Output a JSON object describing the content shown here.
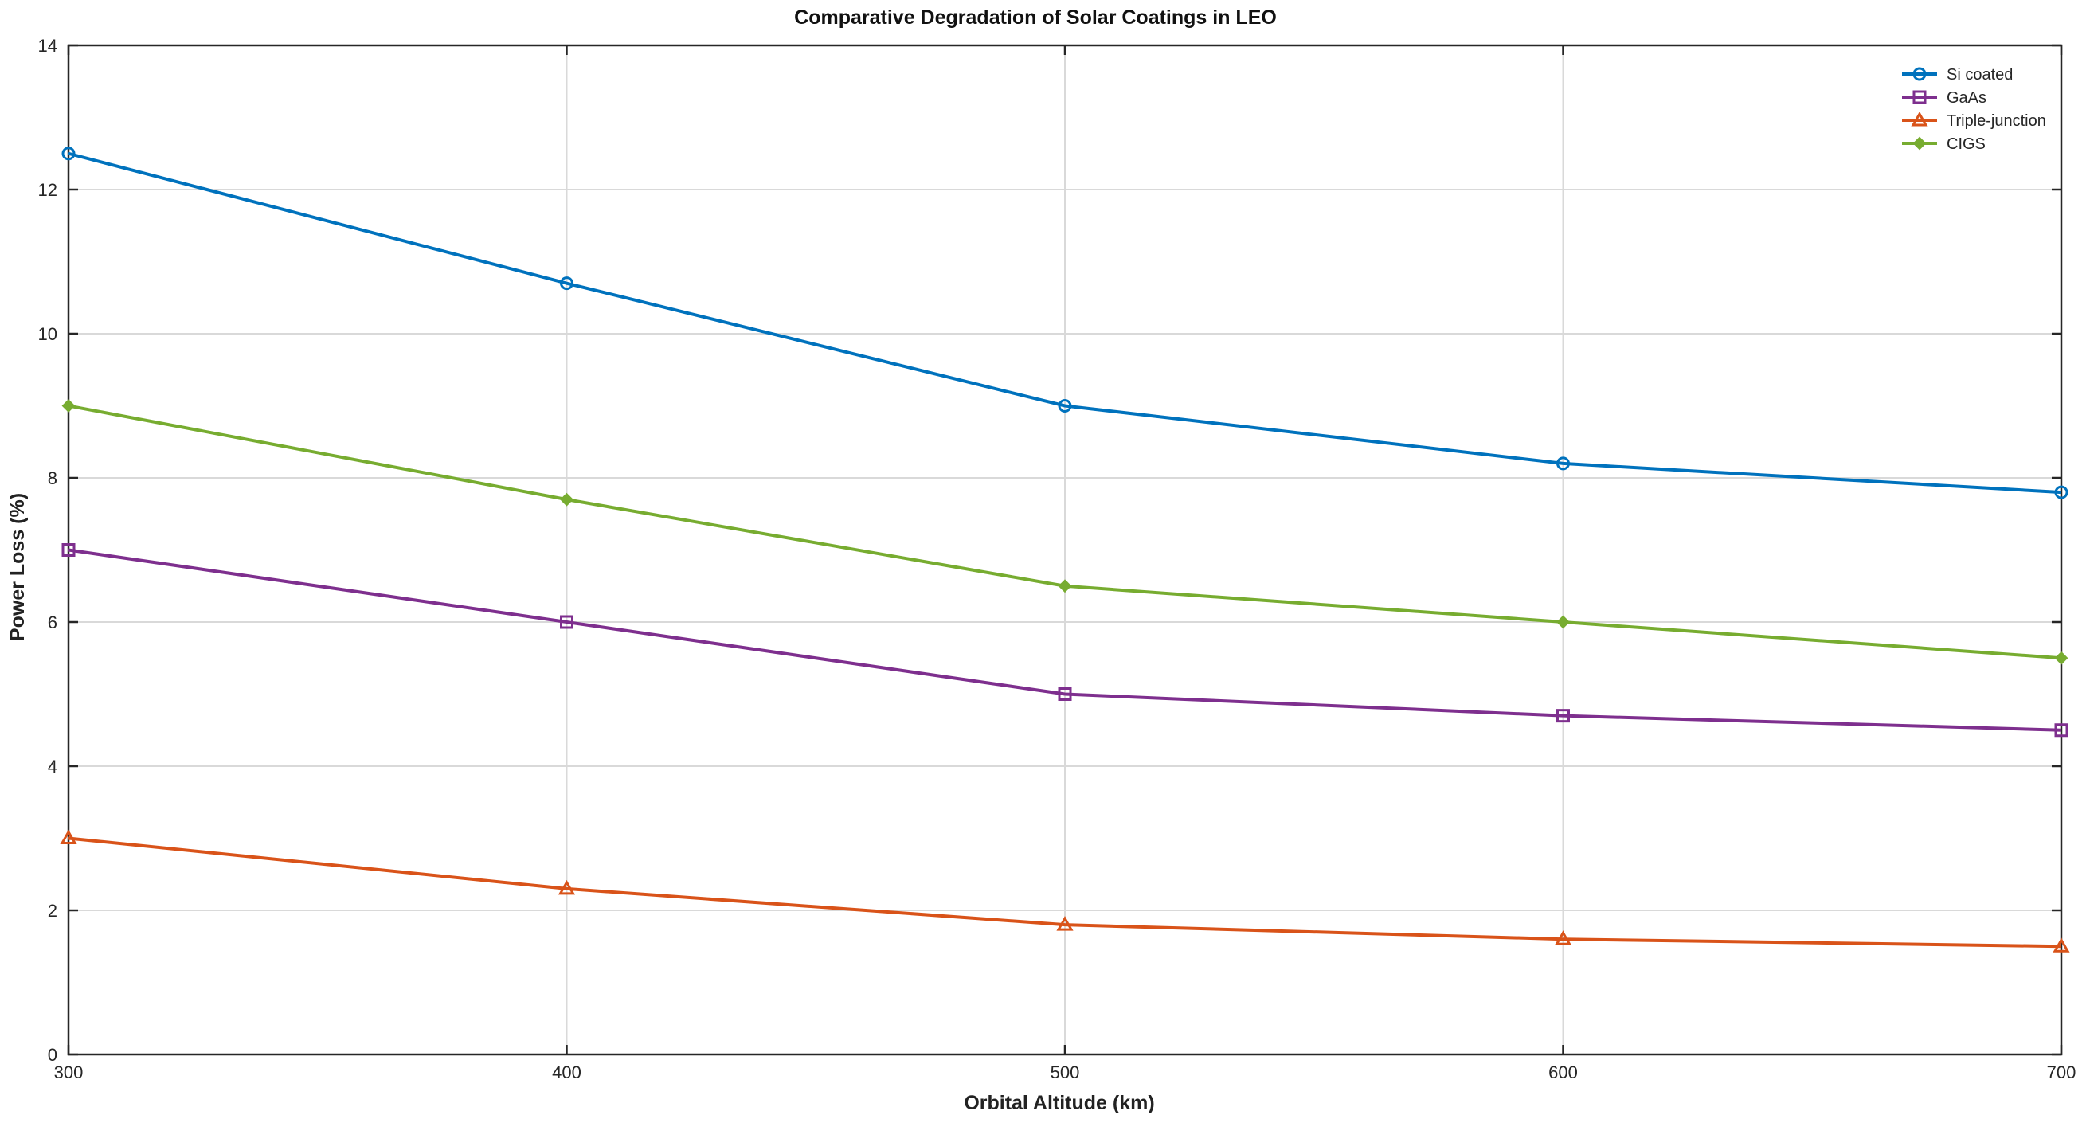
{
  "chart_data": {
    "type": "line",
    "title": "Comparative Degradation of Solar Coatings in LEO",
    "xlabel": "Orbital Altitude (km)",
    "ylabel": "Power Loss (%)",
    "x": [
      300,
      400,
      500,
      600,
      700
    ],
    "xlim": [
      300,
      700
    ],
    "ylim": [
      0,
      14
    ],
    "xticks": [
      "300",
      "400",
      "500",
      "600",
      "700"
    ],
    "yticks": [
      "0",
      "2",
      "4",
      "6",
      "8",
      "10",
      "12",
      "14"
    ],
    "grid": true,
    "legend_position": "top-right",
    "series": [
      {
        "name": "Si coated",
        "color": "#0072BD",
        "marker": "circle",
        "values": [
          12.5,
          10.7,
          9.0,
          8.2,
          7.8
        ]
      },
      {
        "name": "GaAs",
        "color": "#7E2F8E",
        "marker": "square",
        "values": [
          7.0,
          6.0,
          5.0,
          4.7,
          4.5
        ]
      },
      {
        "name": "Triple-junction",
        "color": "#D95319",
        "marker": "triangle",
        "values": [
          3.0,
          2.3,
          1.8,
          1.6,
          1.5
        ]
      },
      {
        "name": "CIGS",
        "color": "#77AC30",
        "marker": "diamond",
        "values": [
          9.0,
          7.7,
          6.5,
          6.0,
          5.5
        ]
      }
    ]
  }
}
